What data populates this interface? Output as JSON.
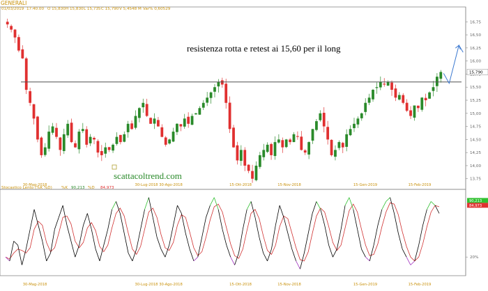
{
  "instrument": {
    "name": "GENERALI"
  },
  "quote_bar": {
    "date": "01/03/2019",
    "time": "17:40.00",
    "open": "O 15,830",
    "high": "H 15,830",
    "low": "L 15,735",
    "close": "C 15,790",
    "volume": "V 5,4548 M",
    "var": "Var% 0,60529"
  },
  "annotations": {
    "headline": "resistenza rotta e retest ai 15,60 per il long",
    "watermark": "scattacoltrend.com",
    "last_price": "15,790",
    "resistance_level": 15.6
  },
  "colors": {
    "up_candle": "#2a8a2a",
    "down_candle": "#e03030",
    "resistance_line": "#505050",
    "projection_arrow": "#3a78d0",
    "stoch_k": "#000000",
    "stoch_d": "#d03030",
    "stoch_overbought": "#30c030",
    "stoch_oversold": "#a030c0",
    "gold_text": "#c8900a",
    "watermark": "#2a8a2a",
    "k_badge": "#30c030",
    "d_badge": "#e03030"
  },
  "chart_data": [
    {
      "type": "candlestick",
      "x_tick_labels": [
        "30-Mag-2018",
        "30-Lug-2018",
        "30-Ago-2018",
        "15-Ott-2018",
        "15-Nov-2018",
        "15-Gen-2019",
        "15-Feb-2019"
      ],
      "y_tick_labels": [
        "16,75",
        "16,50",
        "16,25",
        "16,00",
        "15,75",
        "15,50",
        "15,25",
        "15,00",
        "14,75",
        "14,50",
        "14,25",
        "14,00",
        "13,75"
      ],
      "ylim": [
        13.6,
        16.9
      ],
      "horizontal_line": 15.6,
      "close_series": [
        16.7,
        16.6,
        16.45,
        16.2,
        16.05,
        15.45,
        15.2,
        14.9,
        14.5,
        14.2,
        14.35,
        14.65,
        14.75,
        14.55,
        14.3,
        14.6,
        14.8,
        14.45,
        14.35,
        14.65,
        14.7,
        14.4,
        14.55,
        14.5,
        14.25,
        14.2,
        14.35,
        14.3,
        14.4,
        14.55,
        14.45,
        14.6,
        14.8,
        14.7,
        14.95,
        15.1,
        15.2,
        14.95,
        14.8,
        14.9,
        14.75,
        14.55,
        14.4,
        14.5,
        14.65,
        14.8,
        14.75,
        14.9,
        14.8,
        14.95,
        15.0,
        15.1,
        15.2,
        15.3,
        15.4,
        15.5,
        15.6,
        15.55,
        15.2,
        14.7,
        14.35,
        14.1,
        14.3,
        14.0,
        13.9,
        13.75,
        14.0,
        14.2,
        14.3,
        14.4,
        14.2,
        14.45,
        14.5,
        14.35,
        14.5,
        14.45,
        14.6,
        14.55,
        14.3,
        14.25,
        14.45,
        14.7,
        14.85,
        15.0,
        14.75,
        14.5,
        14.2,
        14.3,
        14.45,
        14.35,
        14.6,
        14.7,
        14.8,
        14.9,
        15.0,
        15.2,
        15.3,
        15.45,
        15.5,
        15.6,
        15.55,
        15.6,
        15.45,
        15.3,
        15.35,
        15.2,
        15.05,
        14.95,
        15.15,
        15.1,
        15.3,
        15.25,
        15.4,
        15.5,
        15.7,
        15.79
      ]
    },
    {
      "type": "line",
      "title": "Stocastico Lento (%K %D)",
      "series": [
        {
          "name": "%K",
          "last": "90,213"
        },
        {
          "name": "%D",
          "last": "84,973"
        }
      ],
      "y_tick_labels": [
        "20%"
      ],
      "ylim": [
        0,
        100
      ],
      "k_values": [
        20,
        15,
        40,
        35,
        10,
        30,
        55,
        80,
        60,
        40,
        15,
        25,
        55,
        70,
        85,
        60,
        40,
        20,
        35,
        60,
        75,
        55,
        30,
        15,
        35,
        55,
        80,
        90,
        75,
        50,
        25,
        15,
        30,
        55,
        80,
        95,
        70,
        45,
        30,
        20,
        35,
        60,
        85,
        75,
        50,
        30,
        15,
        20,
        45,
        70,
        85,
        95,
        80,
        55,
        35,
        20,
        10,
        25,
        55,
        80,
        90,
        70,
        45,
        25,
        15,
        30,
        60,
        85,
        70,
        50,
        30,
        15,
        5,
        25,
        50,
        75,
        90,
        80,
        60,
        35,
        20,
        30,
        55,
        85,
        95,
        80,
        55,
        30,
        20,
        15,
        35,
        60,
        80,
        90,
        95,
        75,
        50,
        30,
        20,
        10,
        15,
        35,
        60,
        80,
        90,
        85,
        75
      ]
    }
  ]
}
